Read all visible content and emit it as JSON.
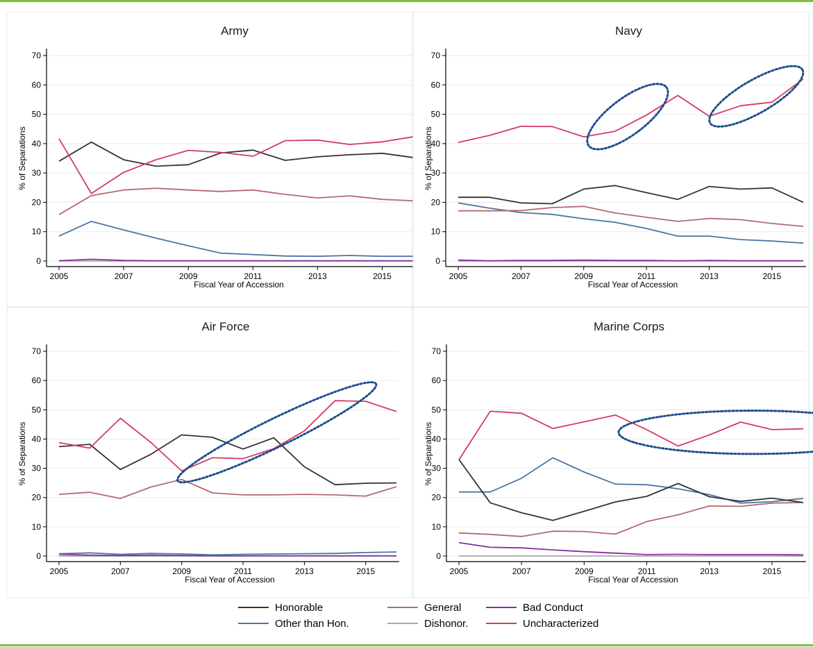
{
  "chart_data": [
    {
      "type": "line",
      "title": "Army",
      "xlabel": "Fiscal Year of Accession",
      "ylabel": "% of Separations",
      "x": [
        2005,
        2006,
        2007,
        2008,
        2009,
        2010,
        2011,
        2012,
        2013,
        2014,
        2015,
        2016
      ],
      "xticks": [
        2005,
        2007,
        2009,
        2011,
        2013,
        2015
      ],
      "yticks": [
        0,
        10,
        20,
        30,
        40,
        50,
        60,
        70
      ],
      "ylim": [
        0,
        70
      ],
      "series": [
        {
          "name": "Honorable",
          "values": [
            34,
            40.5,
            34.5,
            32.3,
            32.8,
            36.8,
            37.8,
            34.3,
            35.5,
            36.2,
            36.7,
            35.2
          ]
        },
        {
          "name": "General",
          "values": [
            15.8,
            22.3,
            24.2,
            24.8,
            24.2,
            23.7,
            24.2,
            22.7,
            21.5,
            22.2,
            21,
            20.5
          ]
        },
        {
          "name": "Bad Conduct",
          "values": [
            0.1,
            0.6,
            0.2,
            0.1,
            0.1,
            0.1,
            0.1,
            0.1,
            0.1,
            0.1,
            0.1,
            0.1
          ]
        },
        {
          "name": "Other than Hon.",
          "values": [
            8.5,
            13.5,
            10.6,
            7.8,
            5.2,
            2.7,
            2.2,
            1.7,
            1.6,
            1.9,
            1.6,
            1.6
          ]
        },
        {
          "name": "Dishonor.",
          "values": [
            0,
            0,
            0,
            0,
            0,
            0,
            0,
            0,
            0,
            0,
            0,
            0
          ]
        },
        {
          "name": "Uncharacterized",
          "values": [
            41.7,
            23,
            30.2,
            34.5,
            37.7,
            37,
            35.7,
            41,
            41.2,
            39.7,
            40.6,
            42.4
          ]
        }
      ],
      "ellipses": []
    },
    {
      "type": "line",
      "title": "Navy",
      "xlabel": "Fiscal Year of Accession",
      "ylabel": "% of Separations",
      "x": [
        2005,
        2006,
        2007,
        2008,
        2009,
        2010,
        2011,
        2012,
        2013,
        2014,
        2015,
        2016
      ],
      "xticks": [
        2005,
        2007,
        2009,
        2011,
        2013,
        2015
      ],
      "yticks": [
        0,
        10,
        20,
        30,
        40,
        50,
        60,
        70
      ],
      "ylim": [
        0,
        70
      ],
      "series": [
        {
          "name": "Honorable",
          "values": [
            21.7,
            21.7,
            19.8,
            19.5,
            24.5,
            25.7,
            23.3,
            21,
            25.4,
            24.5,
            24.9,
            20
          ]
        },
        {
          "name": "General",
          "values": [
            17.1,
            17.1,
            17.2,
            18.2,
            18.6,
            16.4,
            14.9,
            13.5,
            14.5,
            14.1,
            12.8,
            11.8
          ]
        },
        {
          "name": "Bad Conduct",
          "values": [
            0.3,
            0.1,
            0.2,
            0.2,
            0.3,
            0.2,
            0.2,
            0.1,
            0.2,
            0.1,
            0.1,
            0.1
          ]
        },
        {
          "name": "Other than Hon.",
          "values": [
            19.8,
            18,
            16.5,
            15.9,
            14.4,
            13.2,
            11.1,
            8.5,
            8.5,
            7.3,
            6.8,
            6.1
          ]
        },
        {
          "name": "Dishonor.",
          "values": [
            0,
            0,
            0,
            0,
            0,
            0,
            0,
            0,
            0,
            0,
            0,
            0
          ]
        },
        {
          "name": "Uncharacterized",
          "values": [
            40.4,
            42.8,
            45.9,
            45.8,
            42.3,
            44.2,
            49.7,
            56.4,
            49.3,
            52.9,
            54.1,
            62
          ]
        }
      ],
      "ellipses": [
        {
          "cx": 2010.4,
          "cy": 49.2,
          "rx": 1.55,
          "ry": 6.2,
          "rot": -37
        },
        {
          "cx": 2014.5,
          "cy": 56.1,
          "rx": 1.7,
          "ry": 5.6,
          "rot": -30
        }
      ]
    },
    {
      "type": "line",
      "title": "Air Force",
      "xlabel": "Fiscal Year of Accession",
      "ylabel": "% of Separations",
      "x": [
        2005,
        2006,
        2007,
        2008,
        2009,
        2010,
        2011,
        2012,
        2013,
        2014,
        2015,
        2016
      ],
      "xticks": [
        2005,
        2007,
        2009,
        2011,
        2013,
        2015
      ],
      "yticks": [
        0,
        10,
        20,
        30,
        40,
        50,
        60,
        70
      ],
      "ylim": [
        0,
        70
      ],
      "series": [
        {
          "name": "Honorable",
          "values": [
            37.4,
            38.2,
            29.6,
            34.8,
            41.4,
            40.6,
            36.6,
            40.4,
            30.5,
            24.4,
            24.9,
            25
          ]
        },
        {
          "name": "General",
          "values": [
            21.1,
            21.8,
            19.7,
            23.6,
            26.2,
            21.6,
            20.9,
            20.9,
            21.1,
            20.9,
            20.5,
            23.7
          ]
        },
        {
          "name": "Bad Conduct",
          "values": [
            0.6,
            0.3,
            0.2,
            0.3,
            0.2,
            0.1,
            0.1,
            0.1,
            0.1,
            0.1,
            0.1,
            0.1
          ]
        },
        {
          "name": "Other than Hon.",
          "values": [
            0.8,
            1.1,
            0.6,
            0.9,
            0.7,
            0.4,
            0.6,
            0.7,
            0.8,
            0.9,
            1.2,
            1.4
          ]
        },
        {
          "name": "Dishonor.",
          "values": [
            0,
            0,
            0,
            0,
            0,
            0,
            0,
            0,
            0,
            0,
            0,
            0
          ]
        },
        {
          "name": "Uncharacterized",
          "values": [
            38.8,
            36.9,
            47.1,
            38.8,
            29.1,
            33.6,
            33.3,
            36.7,
            42.8,
            53.1,
            52.9,
            49.4
          ]
        }
      ],
      "ellipses": [
        {
          "cx": 2012.1,
          "cy": 42.3,
          "rx": 3.6,
          "ry": 4.8,
          "rot": -26
        }
      ]
    },
    {
      "type": "line",
      "title": "Marine Corps",
      "xlabel": "Fiscal Year of Accession",
      "ylabel": "% of Separations",
      "x": [
        2005,
        2006,
        2007,
        2008,
        2009,
        2010,
        2011,
        2012,
        2013,
        2014,
        2015,
        2016
      ],
      "xticks": [
        2005,
        2007,
        2009,
        2011,
        2013,
        2015
      ],
      "yticks": [
        0,
        10,
        20,
        30,
        40,
        50,
        60,
        70
      ],
      "ylim": [
        0,
        70
      ],
      "series": [
        {
          "name": "Honorable",
          "values": [
            33,
            18.2,
            14.8,
            12.2,
            15.3,
            18.5,
            20.4,
            24.8,
            20.3,
            18.7,
            19.8,
            18.3
          ]
        },
        {
          "name": "General",
          "values": [
            7.9,
            7.4,
            6.7,
            8.5,
            8.4,
            7.5,
            11.8,
            14.1,
            17.1,
            17,
            18.1,
            18.3
          ]
        },
        {
          "name": "Bad Conduct",
          "values": [
            4.6,
            3,
            2.8,
            2.1,
            1.5,
            1,
            0.5,
            0.6,
            0.5,
            0.5,
            0.5,
            0.4
          ]
        },
        {
          "name": "Other than Hon.",
          "values": [
            21.9,
            21.9,
            26.6,
            33.6,
            28.7,
            24.6,
            24.4,
            23,
            21,
            18.1,
            18.6,
            19.7
          ]
        },
        {
          "name": "Dishonor.",
          "values": [
            0,
            0,
            0,
            0,
            0,
            0,
            0,
            0,
            0,
            0,
            0,
            0
          ]
        },
        {
          "name": "Uncharacterized",
          "values": [
            32.9,
            49.5,
            48.8,
            43.6,
            45.9,
            48.2,
            43.2,
            37.6,
            41.4,
            45.8,
            43.2,
            43.5
          ]
        }
      ],
      "ellipses": [
        {
          "cx": 2014.4,
          "cy": 42.3,
          "rx": 4.3,
          "ry": 7.4,
          "rot": 0
        }
      ]
    }
  ],
  "legend": [
    {
      "name": "Honorable",
      "color": "#333333"
    },
    {
      "name": "General",
      "color": "#b36a6e"
    },
    {
      "name": "Bad Conduct",
      "color": "#8a2ba0"
    },
    {
      "name": "Other than Hon.",
      "color": "#4a76a3"
    },
    {
      "name": "Dishonor.",
      "color": "#a8a8a8"
    },
    {
      "name": "Uncharacterized",
      "color": "#d43a62"
    }
  ],
  "colors": {
    "Honorable": "#333333",
    "General": "#b36a6e",
    "Bad Conduct": "#8a2ba0",
    "Other than Hon.": "#4a76a3",
    "Dishonor.": "#a8a8a8",
    "Uncharacterized": "#d43a62",
    "ellipse": "#1f4e8c",
    "frame": "#7fbf3f"
  }
}
